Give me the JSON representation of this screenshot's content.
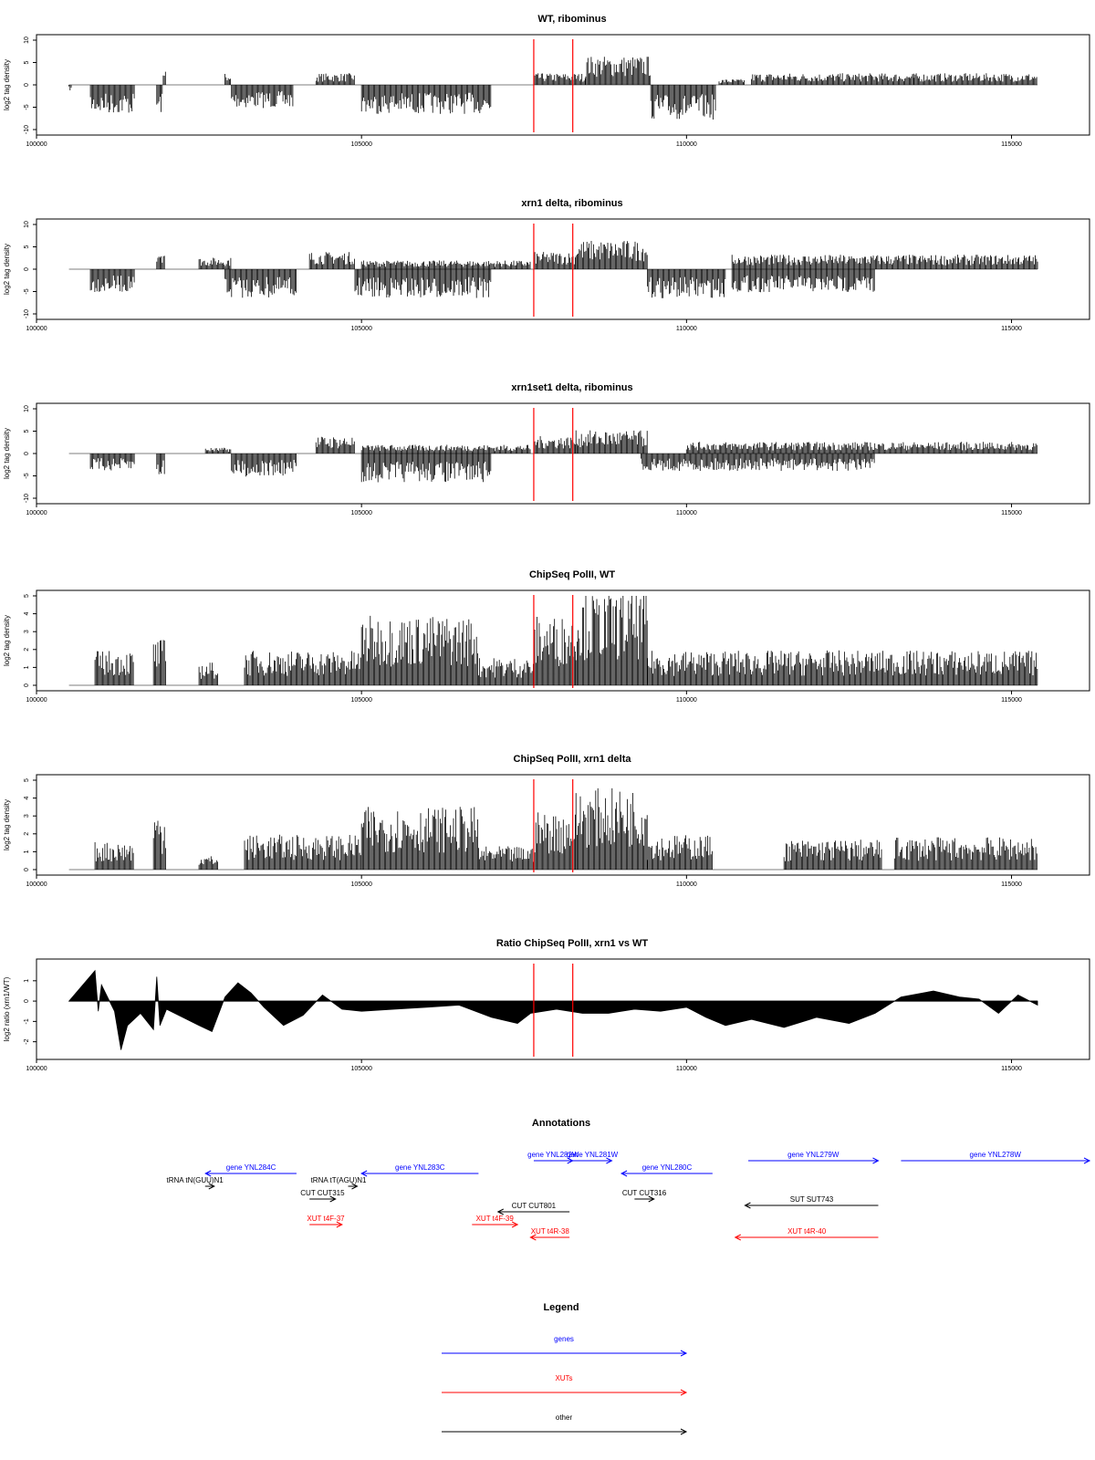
{
  "colors": {
    "gene": "#0000ff",
    "xut": "#ff0000",
    "other": "#000000",
    "marker": "#ff0000",
    "bars": "#000000"
  },
  "chart_data": [
    {
      "type": "bar",
      "title": "WT, ribominus",
      "ylabel": "log2 tag density",
      "xlim": [
        100000,
        116200
      ],
      "ylim": [
        -10,
        10
      ],
      "xticks": [
        100000,
        105000,
        110000,
        115000
      ],
      "yticks": [
        -10,
        -5,
        0,
        5,
        10
      ],
      "markers": [
        107650,
        108250
      ],
      "segments": [
        {
          "x": [
            100500,
            100550
          ],
          "y": -1
        },
        {
          "x": [
            100830,
            101520
          ],
          "y": -5
        },
        {
          "x": [
            101850,
            101950
          ],
          "y": -5
        },
        {
          "x": [
            101950,
            102000
          ],
          "y": 3
        },
        {
          "x": [
            102900,
            103000
          ],
          "y": 2
        },
        {
          "x": [
            103000,
            103950
          ],
          "y": -4
        },
        {
          "x": [
            104300,
            104900
          ],
          "y": 2
        },
        {
          "x": [
            105000,
            107000
          ],
          "y": -5
        },
        {
          "x": [
            107650,
            108450
          ],
          "y": 2
        },
        {
          "x": [
            108450,
            109450
          ],
          "y": 5
        },
        {
          "x": [
            109450,
            110450
          ],
          "y": -6
        },
        {
          "x": [
            110500,
            110900
          ],
          "y": 1
        },
        {
          "x": [
            111000,
            113500
          ],
          "y": 2
        },
        {
          "x": [
            113500,
            115400
          ],
          "y": 2
        }
      ]
    },
    {
      "type": "bar",
      "title": "xrn1 delta, ribominus",
      "ylabel": "log2 tag density",
      "xlim": [
        100000,
        116200
      ],
      "ylim": [
        -10,
        10
      ],
      "xticks": [
        100000,
        105000,
        110000,
        115000
      ],
      "yticks": [
        -10,
        -5,
        0,
        5,
        10
      ],
      "markers": [
        107650,
        108250
      ],
      "segments": [
        {
          "x": [
            100830,
            101520
          ],
          "y": -4
        },
        {
          "x": [
            101850,
            101980
          ],
          "y": 4
        },
        {
          "x": [
            102500,
            103000
          ],
          "y": 2
        },
        {
          "x": [
            102900,
            104000
          ],
          "y": -5
        },
        {
          "x": [
            104200,
            104900
          ],
          "y": 3
        },
        {
          "x": [
            104900,
            107000
          ],
          "y": -5
        },
        {
          "x": [
            105000,
            107600
          ],
          "y": 1.5
        },
        {
          "x": [
            107650,
            108300
          ],
          "y": 3
        },
        {
          "x": [
            108300,
            109400
          ],
          "y": 5
        },
        {
          "x": [
            109400,
            110600
          ],
          "y": -5
        },
        {
          "x": [
            110700,
            112900
          ],
          "y": -4
        },
        {
          "x": [
            110700,
            115400
          ],
          "y": 2.5
        }
      ]
    },
    {
      "type": "bar",
      "title": "xrn1set1 delta, ribominus",
      "ylabel": "log2 tag density",
      "xlim": [
        100000,
        116200
      ],
      "ylim": [
        -10,
        10
      ],
      "xticks": [
        100000,
        105000,
        110000,
        115000
      ],
      "yticks": [
        -10,
        -5,
        0,
        5,
        10
      ],
      "markers": [
        107650,
        108250
      ],
      "segments": [
        {
          "x": [
            100830,
            101520
          ],
          "y": -3
        },
        {
          "x": [
            101850,
            101980
          ],
          "y": -4
        },
        {
          "x": [
            102600,
            103000
          ],
          "y": 1
        },
        {
          "x": [
            103000,
            104000
          ],
          "y": -4
        },
        {
          "x": [
            104300,
            104900
          ],
          "y": 3
        },
        {
          "x": [
            105000,
            107000
          ],
          "y": -5
        },
        {
          "x": [
            105000,
            107600
          ],
          "y": 1.5
        },
        {
          "x": [
            107650,
            108300
          ],
          "y": 3
        },
        {
          "x": [
            108300,
            109400
          ],
          "y": 4
        },
        {
          "x": [
            109300,
            112900
          ],
          "y": -3
        },
        {
          "x": [
            110000,
            115400
          ],
          "y": 2
        }
      ]
    },
    {
      "type": "bar",
      "title": "ChipSeq PolII, WT",
      "ylabel": "log2 tag density",
      "xlim": [
        100000,
        116200
      ],
      "ylim": [
        0,
        5
      ],
      "xticks": [
        100000,
        105000,
        110000,
        115000
      ],
      "yticks": [
        0,
        1,
        2,
        3,
        4,
        5
      ],
      "markers": [
        107650,
        108250
      ],
      "segments": [
        {
          "x": [
            100900,
            101500
          ],
          "y": 1.5
        },
        {
          "x": [
            101800,
            102000
          ],
          "y": 2
        },
        {
          "x": [
            102500,
            102800
          ],
          "y": 1
        },
        {
          "x": [
            103200,
            105000
          ],
          "y": 1.5
        },
        {
          "x": [
            105000,
            106800
          ],
          "y": 3
        },
        {
          "x": [
            106800,
            107650
          ],
          "y": 1.2
        },
        {
          "x": [
            107650,
            108300
          ],
          "y": 3
        },
        {
          "x": [
            108300,
            109400
          ],
          "y": 4
        },
        {
          "x": [
            109400,
            115400
          ],
          "y": 1.5
        }
      ]
    },
    {
      "type": "bar",
      "title": "ChipSeq PolII, xrn1 delta",
      "ylabel": "log2 tag density",
      "xlim": [
        100000,
        116200
      ],
      "ylim": [
        0,
        5
      ],
      "xticks": [
        100000,
        105000,
        110000,
        115000
      ],
      "yticks": [
        0,
        1,
        2,
        3,
        4,
        5
      ],
      "markers": [
        107650,
        108250
      ],
      "segments": [
        {
          "x": [
            100900,
            101500
          ],
          "y": 1.2
        },
        {
          "x": [
            101800,
            102000
          ],
          "y": 2.5
        },
        {
          "x": [
            102500,
            102800
          ],
          "y": 0.6
        },
        {
          "x": [
            103200,
            105000
          ],
          "y": 1.5
        },
        {
          "x": [
            105000,
            106800
          ],
          "y": 2.7
        },
        {
          "x": [
            106800,
            107650
          ],
          "y": 1
        },
        {
          "x": [
            107650,
            108300
          ],
          "y": 2.5
        },
        {
          "x": [
            108300,
            109400
          ],
          "y": 3.5
        },
        {
          "x": [
            109400,
            110400
          ],
          "y": 1.5
        },
        {
          "x": [
            111500,
            113000
          ],
          "y": 1.3
        },
        {
          "x": [
            113200,
            115400
          ],
          "y": 1.4
        }
      ]
    },
    {
      "type": "area",
      "title": "Ratio ChipSeq PolII, xrn1 vs WT",
      "ylabel": "log2 ratio (xrn1/WT)",
      "xlim": [
        100000,
        116200
      ],
      "ylim": [
        -2.6,
        1.8
      ],
      "xticks": [
        100000,
        105000,
        110000,
        115000
      ],
      "yticks": [
        -2,
        -1,
        0,
        1
      ],
      "markers": [
        107650,
        108250
      ],
      "x": [
        100500,
        100900,
        100950,
        101000,
        101200,
        101300,
        101400,
        101600,
        101800,
        101850,
        101900,
        102000,
        102500,
        102700,
        102900,
        103100,
        103300,
        103500,
        103800,
        104100,
        104400,
        104700,
        105000,
        105500,
        106000,
        106500,
        107000,
        107400,
        107600,
        108000,
        108400,
        108800,
        109200,
        109600,
        110000,
        110300,
        110600,
        111000,
        111500,
        112000,
        112500,
        112900,
        113300,
        113800,
        114200,
        114500,
        114800,
        115100,
        115400
      ],
      "y": [
        0,
        1.5,
        -0.5,
        0.8,
        -0.5,
        -2.4,
        -1.2,
        -0.6,
        -1.4,
        1.2,
        -1.2,
        -0.4,
        -1.2,
        -1.5,
        0.2,
        0.9,
        0.4,
        -0.3,
        -1.2,
        -0.7,
        0.3,
        -0.4,
        -0.5,
        -0.4,
        -0.3,
        -0.2,
        -0.8,
        -1.1,
        -0.6,
        -0.4,
        -0.6,
        -0.6,
        -0.4,
        -0.5,
        -0.3,
        -0.8,
        -1.2,
        -0.9,
        -1.3,
        -0.8,
        -1.1,
        -0.6,
        0.2,
        0.5,
        0.2,
        0.1,
        -0.6,
        0.3,
        -0.2
      ]
    }
  ],
  "annotations": {
    "title": "Annotations",
    "features": [
      {
        "label": "gene YNL284C",
        "kind": "gene",
        "start": 104000,
        "end": 102600,
        "row": 1
      },
      {
        "label": "gene YNL283C",
        "kind": "gene",
        "start": 106800,
        "end": 105000,
        "row": 1
      },
      {
        "label": "gene YNL282W",
        "kind": "gene",
        "start": 107650,
        "end": 108250,
        "row": 0
      },
      {
        "label": "gene YNL281W",
        "kind": "gene",
        "start": 108250,
        "end": 108850,
        "row": 0
      },
      {
        "label": "gene YNL280C",
        "kind": "gene",
        "start": 110400,
        "end": 109000,
        "row": 1
      },
      {
        "label": "gene YNL279W",
        "kind": "gene",
        "start": 110950,
        "end": 112950,
        "row": 0
      },
      {
        "label": "gene YNL278W",
        "kind": "gene",
        "start": 113300,
        "end": 116200,
        "row": 0
      },
      {
        "label": "tRNA tN(GUU)N1",
        "kind": "other",
        "start": 102650,
        "end": 102650,
        "row": 2
      },
      {
        "label": "tRNA tT(AGU)N1",
        "kind": "other",
        "start": 104850,
        "end": 104850,
        "row": 2
      },
      {
        "label": "CUT CUT315",
        "kind": "other",
        "start": 104200,
        "end": 104600,
        "row": 3
      },
      {
        "label": "CUT CUT801",
        "kind": "other",
        "start": 108200,
        "end": 107100,
        "row": 4
      },
      {
        "label": "CUT CUT316",
        "kind": "other",
        "start": 109200,
        "end": 109500,
        "row": 3
      },
      {
        "label": "SUT SUT743",
        "kind": "other",
        "start": 112950,
        "end": 110900,
        "row": 3.5
      },
      {
        "label": "XUT t4F-37",
        "kind": "xut",
        "start": 104200,
        "end": 104700,
        "row": 5
      },
      {
        "label": "XUT t4F-39",
        "kind": "xut",
        "start": 106700,
        "end": 107400,
        "row": 5
      },
      {
        "label": "XUT t4R-38",
        "kind": "xut",
        "start": 108200,
        "end": 107600,
        "row": 6
      },
      {
        "label": "XUT t4R-40",
        "kind": "xut",
        "start": 112950,
        "end": 110750,
        "row": 6
      }
    ]
  },
  "legend": {
    "title": "Legend",
    "items": [
      {
        "label": "genes",
        "kind": "gene"
      },
      {
        "label": "XUTs",
        "kind": "xut"
      },
      {
        "label": "other",
        "kind": "other"
      }
    ]
  }
}
